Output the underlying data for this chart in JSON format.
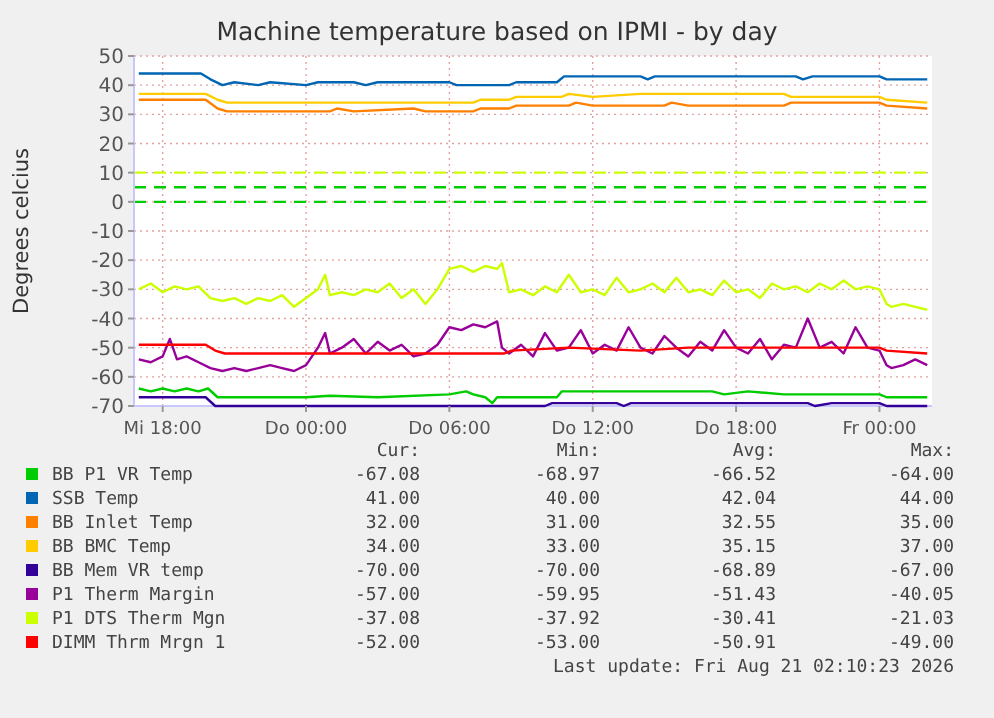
{
  "chart_data": {
    "type": "line",
    "title": "Machine temperature based on IPMI - by day",
    "ylabel": "Degrees celcius",
    "xlim": [
      "2026-08-19T16:48",
      "2026-08-21T02:12"
    ],
    "xticks": [
      {
        "value": "2026-08-19T18:00",
        "label": "Mi 18:00"
      },
      {
        "value": "2026-08-20T00:00",
        "label": "Do 00:00"
      },
      {
        "value": "2026-08-20T06:00",
        "label": "Do 06:00"
      },
      {
        "value": "2026-08-20T12:00",
        "label": "Do 12:00"
      },
      {
        "value": "2026-08-20T18:00",
        "label": "Do 18:00"
      },
      {
        "value": "2026-08-21T00:00",
        "label": "Fr 00:00"
      }
    ],
    "ylim": [
      -70,
      50
    ],
    "yticks": [
      -70,
      -60,
      -50,
      -40,
      -30,
      -20,
      -10,
      0,
      10,
      20,
      30,
      40,
      50
    ],
    "grid": true,
    "legend": "bottom",
    "marker": "none",
    "line_style": "solid",
    "ref_lines": [
      {
        "axis": "y",
        "value": 10,
        "color": "#ccff00",
        "line_style": "dashed"
      },
      {
        "axis": "y",
        "value": 5,
        "color": "#00cc00",
        "line_style": "dashed"
      },
      {
        "axis": "y",
        "value": 0,
        "color": "#00cc00",
        "line_style": "dashed"
      }
    ],
    "series": [
      {
        "name": "BB P1 VR Temp",
        "color": "#00cc00",
        "x": [
          "2026-08-19T17:00",
          "2026-08-19T17:30",
          "2026-08-19T18:00",
          "2026-08-19T18:30",
          "2026-08-19T19:00",
          "2026-08-19T19:30",
          "2026-08-19T19:54",
          "2026-08-19T20:18",
          "2026-08-20T00:00",
          "2026-08-20T01:00",
          "2026-08-20T03:00",
          "2026-08-20T06:00",
          "2026-08-20T06:42",
          "2026-08-20T07:00",
          "2026-08-20T07:30",
          "2026-08-20T07:48",
          "2026-08-20T08:00",
          "2026-08-20T10:30",
          "2026-08-20T10:42",
          "2026-08-20T17:00",
          "2026-08-20T17:30",
          "2026-08-20T18:30",
          "2026-08-20T20:00",
          "2026-08-21T00:00",
          "2026-08-21T00:18",
          "2026-08-21T02:00"
        ],
        "values": [
          -64,
          -65,
          -64,
          -65,
          -64,
          -65,
          -64,
          -67,
          -67,
          -66.5,
          -67,
          -66,
          -65,
          -66,
          -67,
          -69,
          -67,
          -67,
          -65,
          -65,
          -66,
          -65,
          -66,
          -66,
          -67,
          -67
        ]
      },
      {
        "name": "SSB Temp",
        "color": "#0066b3",
        "x": [
          "2026-08-19T17:00",
          "2026-08-19T19:36",
          "2026-08-19T20:00",
          "2026-08-19T20:30",
          "2026-08-19T21:00",
          "2026-08-19T22:00",
          "2026-08-19T22:30",
          "2026-08-20T00:00",
          "2026-08-20T00:30",
          "2026-08-20T02:00",
          "2026-08-20T02:30",
          "2026-08-20T03:00",
          "2026-08-20T06:00",
          "2026-08-20T06:18",
          "2026-08-20T07:00",
          "2026-08-20T08:30",
          "2026-08-20T08:48",
          "2026-08-20T10:30",
          "2026-08-20T10:48",
          "2026-08-20T14:00",
          "2026-08-20T14:18",
          "2026-08-20T14:36",
          "2026-08-20T20:30",
          "2026-08-20T20:48",
          "2026-08-20T21:12",
          "2026-08-21T00:00",
          "2026-08-21T00:18",
          "2026-08-21T02:00"
        ],
        "values": [
          44,
          44,
          42,
          40,
          41,
          40,
          41,
          40,
          41,
          41,
          40,
          41,
          41,
          40,
          40,
          40,
          41,
          41,
          43,
          43,
          42,
          43,
          43,
          42,
          43,
          43,
          42,
          42
        ]
      },
      {
        "name": "BB Inlet Temp",
        "color": "#ff8000",
        "x": [
          "2026-08-19T17:00",
          "2026-08-19T19:48",
          "2026-08-19T20:18",
          "2026-08-19T20:42",
          "2026-08-20T01:00",
          "2026-08-20T01:18",
          "2026-08-20T02:00",
          "2026-08-20T04:30",
          "2026-08-20T05:00",
          "2026-08-20T07:00",
          "2026-08-20T07:18",
          "2026-08-20T08:30",
          "2026-08-20T08:48",
          "2026-08-20T11:00",
          "2026-08-20T11:18",
          "2026-08-20T12:00",
          "2026-08-20T15:00",
          "2026-08-20T15:18",
          "2026-08-20T16:00",
          "2026-08-20T20:00",
          "2026-08-20T20:18",
          "2026-08-21T00:00",
          "2026-08-21T00:18",
          "2026-08-21T02:00"
        ],
        "values": [
          35,
          35,
          32,
          31,
          31,
          32,
          31,
          32,
          31,
          31,
          32,
          32,
          33,
          33,
          34,
          33,
          33,
          34,
          33,
          33,
          34,
          34,
          33,
          32
        ]
      },
      {
        "name": "BB BMC Temp",
        "color": "#ffcc00",
        "x": [
          "2026-08-19T17:00",
          "2026-08-19T19:48",
          "2026-08-19T20:18",
          "2026-08-19T20:42",
          "2026-08-20T07:00",
          "2026-08-20T07:18",
          "2026-08-20T08:30",
          "2026-08-20T08:48",
          "2026-08-20T10:42",
          "2026-08-20T11:00",
          "2026-08-20T12:00",
          "2026-08-20T14:00",
          "2026-08-20T20:00",
          "2026-08-20T20:18",
          "2026-08-21T00:00",
          "2026-08-21T00:18",
          "2026-08-21T02:00"
        ],
        "values": [
          37,
          37,
          35,
          34,
          34,
          35,
          35,
          36,
          36,
          37,
          36,
          37,
          37,
          36,
          36,
          35,
          34
        ]
      },
      {
        "name": "BB Mem VR temp",
        "color": "#330099",
        "x": [
          "2026-08-19T17:00",
          "2026-08-19T19:48",
          "2026-08-19T20:12",
          "2026-08-20T10:00",
          "2026-08-20T10:18",
          "2026-08-20T13:00",
          "2026-08-20T13:18",
          "2026-08-20T13:36",
          "2026-08-20T21:00",
          "2026-08-20T21:18",
          "2026-08-20T22:00",
          "2026-08-21T00:00",
          "2026-08-21T00:18",
          "2026-08-21T02:00"
        ],
        "values": [
          -67,
          -67,
          -70,
          -70,
          -69,
          -69,
          -70,
          -69,
          -69,
          -70,
          -69,
          -69,
          -70,
          -70
        ]
      },
      {
        "name": "P1 Therm Margin",
        "color": "#990099",
        "x": [
          "2026-08-19T17:00",
          "2026-08-19T17:30",
          "2026-08-19T18:00",
          "2026-08-19T18:18",
          "2026-08-19T18:36",
          "2026-08-19T19:00",
          "2026-08-19T19:30",
          "2026-08-19T20:00",
          "2026-08-19T20:30",
          "2026-08-19T21:00",
          "2026-08-19T21:30",
          "2026-08-19T22:00",
          "2026-08-19T22:30",
          "2026-08-19T23:00",
          "2026-08-19T23:30",
          "2026-08-20T00:00",
          "2026-08-20T00:30",
          "2026-08-20T00:48",
          "2026-08-20T01:00",
          "2026-08-20T01:30",
          "2026-08-20T02:00",
          "2026-08-20T02:30",
          "2026-08-20T03:00",
          "2026-08-20T03:30",
          "2026-08-20T04:00",
          "2026-08-20T04:30",
          "2026-08-20T05:00",
          "2026-08-20T05:30",
          "2026-08-20T06:00",
          "2026-08-20T06:30",
          "2026-08-20T07:00",
          "2026-08-20T07:30",
          "2026-08-20T08:00",
          "2026-08-20T08:12",
          "2026-08-20T08:30",
          "2026-08-20T09:00",
          "2026-08-20T09:30",
          "2026-08-20T10:00",
          "2026-08-20T10:30",
          "2026-08-20T11:00",
          "2026-08-20T11:30",
          "2026-08-20T12:00",
          "2026-08-20T12:30",
          "2026-08-20T13:00",
          "2026-08-20T13:30",
          "2026-08-20T14:00",
          "2026-08-20T14:30",
          "2026-08-20T15:00",
          "2026-08-20T15:30",
          "2026-08-20T16:00",
          "2026-08-20T16:30",
          "2026-08-20T17:00",
          "2026-08-20T17:30",
          "2026-08-20T18:00",
          "2026-08-20T18:30",
          "2026-08-20T19:00",
          "2026-08-20T19:30",
          "2026-08-20T20:00",
          "2026-08-20T20:30",
          "2026-08-20T21:00",
          "2026-08-20T21:30",
          "2026-08-20T22:00",
          "2026-08-20T22:30",
          "2026-08-20T23:00",
          "2026-08-20T23:30",
          "2026-08-21T00:00",
          "2026-08-21T00:18",
          "2026-08-21T00:30",
          "2026-08-21T01:00",
          "2026-08-21T01:30",
          "2026-08-21T02:00"
        ],
        "values": [
          -54,
          -55,
          -53,
          -47,
          -54,
          -53,
          -55,
          -57,
          -58,
          -57,
          -58,
          -57,
          -56,
          -57,
          -58,
          -56,
          -50,
          -45,
          -52,
          -50,
          -47,
          -52,
          -48,
          -51,
          -49,
          -53,
          -52,
          -49,
          -43,
          -44,
          -42,
          -43,
          -41,
          -50,
          -52,
          -49,
          -53,
          -45,
          -51,
          -50,
          -44,
          -52,
          -49,
          -51,
          -43,
          -50,
          -52,
          -46,
          -50,
          -53,
          -48,
          -51,
          -44,
          -50,
          -52,
          -47,
          -54,
          -49,
          -50,
          -40,
          -50,
          -48,
          -52,
          -43,
          -50,
          -51,
          -56,
          -57,
          -56,
          -54,
          -56
        ]
      },
      {
        "name": "P1 DTS Therm Mgn",
        "color": "#ccff00",
        "x": [
          "2026-08-19T17:00",
          "2026-08-19T17:30",
          "2026-08-19T18:00",
          "2026-08-19T18:30",
          "2026-08-19T19:00",
          "2026-08-19T19:30",
          "2026-08-19T20:00",
          "2026-08-19T20:30",
          "2026-08-19T21:00",
          "2026-08-19T21:30",
          "2026-08-19T22:00",
          "2026-08-19T22:30",
          "2026-08-19T23:00",
          "2026-08-19T23:30",
          "2026-08-20T00:00",
          "2026-08-20T00:30",
          "2026-08-20T00:48",
          "2026-08-20T01:00",
          "2026-08-20T01:30",
          "2026-08-20T02:00",
          "2026-08-20T02:30",
          "2026-08-20T03:00",
          "2026-08-20T03:30",
          "2026-08-20T04:00",
          "2026-08-20T04:30",
          "2026-08-20T05:00",
          "2026-08-20T05:30",
          "2026-08-20T06:00",
          "2026-08-20T06:30",
          "2026-08-20T07:00",
          "2026-08-20T07:30",
          "2026-08-20T08:00",
          "2026-08-20T08:12",
          "2026-08-20T08:30",
          "2026-08-20T09:00",
          "2026-08-20T09:30",
          "2026-08-20T10:00",
          "2026-08-20T10:30",
          "2026-08-20T11:00",
          "2026-08-20T11:30",
          "2026-08-20T12:00",
          "2026-08-20T12:30",
          "2026-08-20T13:00",
          "2026-08-20T13:30",
          "2026-08-20T14:00",
          "2026-08-20T14:30",
          "2026-08-20T15:00",
          "2026-08-20T15:30",
          "2026-08-20T16:00",
          "2026-08-20T16:30",
          "2026-08-20T17:00",
          "2026-08-20T17:30",
          "2026-08-20T18:00",
          "2026-08-20T18:30",
          "2026-08-20T19:00",
          "2026-08-20T19:30",
          "2026-08-20T20:00",
          "2026-08-20T20:30",
          "2026-08-20T21:00",
          "2026-08-20T21:30",
          "2026-08-20T22:00",
          "2026-08-20T22:30",
          "2026-08-20T23:00",
          "2026-08-20T23:30",
          "2026-08-21T00:00",
          "2026-08-21T00:18",
          "2026-08-21T00:30",
          "2026-08-21T01:00",
          "2026-08-21T01:30",
          "2026-08-21T02:00"
        ],
        "values": [
          -30,
          -28,
          -31,
          -29,
          -30,
          -29,
          -33,
          -34,
          -33,
          -35,
          -33,
          -34,
          -32,
          -36,
          -33,
          -30,
          -25,
          -32,
          -31,
          -32,
          -30,
          -31,
          -28,
          -33,
          -30,
          -35,
          -30,
          -23,
          -22,
          -24,
          -22,
          -23,
          -21,
          -31,
          -30,
          -32,
          -29,
          -31,
          -25,
          -31,
          -30,
          -32,
          -26,
          -31,
          -30,
          -28,
          -31,
          -26,
          -31,
          -30,
          -32,
          -27,
          -31,
          -30,
          -33,
          -28,
          -30,
          -29,
          -31,
          -28,
          -30,
          -27,
          -30,
          -29,
          -30,
          -35,
          -36,
          -35,
          -36,
          -37
        ]
      },
      {
        "name": "DIMM Thrm Mrgn 1",
        "color": "#ff0000",
        "x": [
          "2026-08-19T17:00",
          "2026-08-19T19:48",
          "2026-08-19T20:12",
          "2026-08-19T20:36",
          "2026-08-20T08:18",
          "2026-08-20T08:36",
          "2026-08-20T11:00",
          "2026-08-20T14:00",
          "2026-08-20T16:00",
          "2026-08-21T00:00",
          "2026-08-21T00:18",
          "2026-08-21T02:00"
        ],
        "values": [
          -49,
          -49,
          -51,
          -52,
          -52,
          -51,
          -50,
          -51,
          -50,
          -50,
          -51,
          -52
        ]
      }
    ],
    "annotations": [
      "Cur:",
      "Min:",
      "Avg:",
      "Max:",
      "-67.08",
      "-68.97",
      "-66.52",
      "-64.00",
      "41.00",
      "40.00",
      "42.04",
      "44.00",
      "32.00",
      "31.00",
      "32.55",
      "35.00",
      "34.00",
      "33.00",
      "35.15",
      "37.00",
      "-70.00",
      "-70.00",
      "-68.89",
      "-67.00",
      "-57.00",
      "-59.95",
      "-51.43",
      "-40.05",
      "-37.08",
      "-37.92",
      "-30.41",
      "-21.03",
      "-52.00",
      "-53.00",
      "-50.91",
      "-49.00",
      "Last update: Fri Aug 21 02:10:23 2026"
    ]
  }
}
